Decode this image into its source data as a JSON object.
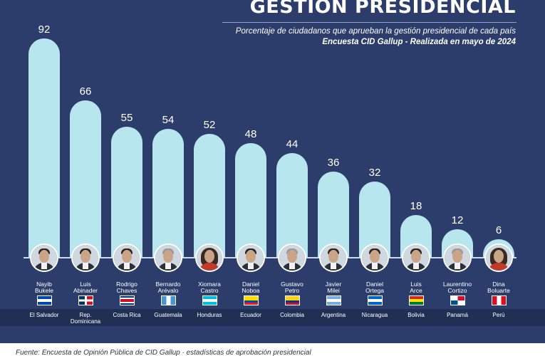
{
  "header": {
    "title": "GESTIÓN PRESIDENCIAL",
    "subtitle": "Porcentaje de ciudadanos que aprueban la gestión presidencial de cada país",
    "survey": "Encuesta CID Gallup - Realizada en mayo de 2024"
  },
  "colors": {
    "background": "#2c3d6b",
    "bar": "#b8e6ef",
    "country_band": "#203055"
  },
  "chart_data": {
    "type": "bar",
    "title": "GESTIÓN PRESIDENCIAL",
    "subtitle": "Porcentaje de ciudadanos que aprueban la gestión presidencial de cada país",
    "categories": [
      "Nayib\nBukele",
      "Luis\nAbinader",
      "Rodrigo\nChaves",
      "Bernardo\nArévalo",
      "Xiomara\nCastro",
      "Daniel\nNoboa",
      "Gustavo\nPetro",
      "Javier\nMilei",
      "Daniel\nOrtega",
      "Luis\nArce",
      "Laurentino\nCortizo",
      "Dina\nBoluarte"
    ],
    "countries": [
      "El Salvador",
      "Rep.\nDominicana",
      "Costa Rica",
      "Guatemala",
      "Honduras",
      "Ecuador",
      "Colombia",
      "Argentina",
      "Nicaragua",
      "Bolivia",
      "Panamá",
      "Perú"
    ],
    "values": [
      92,
      66,
      55,
      54,
      52,
      48,
      44,
      36,
      32,
      18,
      12,
      6
    ],
    "ylim": [
      0,
      92
    ],
    "data_labels": true
  },
  "flags": [
    {
      "country": "El Salvador",
      "colors": [
        "#0047ab",
        "#ffffff",
        "#0047ab"
      ],
      "orient": "h"
    },
    {
      "country": "Rep. Dominicana",
      "colors": [
        "#002d62",
        "#ce1126"
      ],
      "orient": "cross"
    },
    {
      "country": "Costa Rica",
      "colors": [
        "#002b7f",
        "#ffffff",
        "#ce1126",
        "#ffffff",
        "#002b7f"
      ],
      "orient": "h5"
    },
    {
      "country": "Guatemala",
      "colors": [
        "#4997d0",
        "#ffffff",
        "#4997d0"
      ],
      "orient": "v"
    },
    {
      "country": "Honduras",
      "colors": [
        "#00bce4",
        "#ffffff",
        "#00bce4"
      ],
      "orient": "h"
    },
    {
      "country": "Ecuador",
      "colors": [
        "#ffdd00",
        "#ffdd00",
        "#034ea2",
        "#ed1c24"
      ],
      "orient": "h4"
    },
    {
      "country": "Colombia",
      "colors": [
        "#fcd116",
        "#fcd116",
        "#003893",
        "#ce1126"
      ],
      "orient": "h4"
    },
    {
      "country": "Argentina",
      "colors": [
        "#74acdf",
        "#ffffff",
        "#74acdf"
      ],
      "orient": "h"
    },
    {
      "country": "Nicaragua",
      "colors": [
        "#0067c6",
        "#ffffff",
        "#0067c6"
      ],
      "orient": "h"
    },
    {
      "country": "Bolivia",
      "colors": [
        "#d52b1e",
        "#f9e300",
        "#007934"
      ],
      "orient": "h"
    },
    {
      "country": "Panamá",
      "colors": [
        "#ffffff",
        "#d21034",
        "#005293",
        "#ffffff"
      ],
      "orient": "quad"
    },
    {
      "country": "Perú",
      "colors": [
        "#d91023",
        "#ffffff",
        "#d91023"
      ],
      "orient": "v"
    }
  ],
  "source": "Fuente: Encuesta de Opinión Pública de CID Gallup · estadísticas de aprobación presidencial"
}
